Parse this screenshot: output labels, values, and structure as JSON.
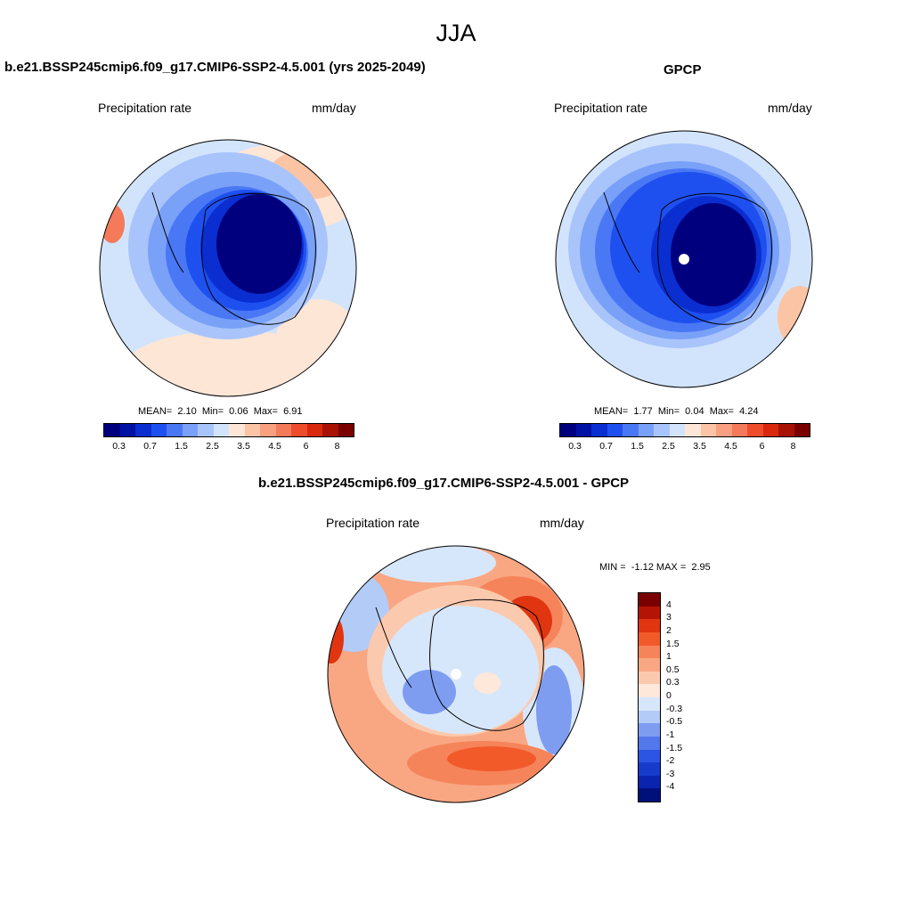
{
  "figure": {
    "season": "JJA",
    "panels": [
      {
        "title": "b.e21.BSSP245cmip6.f09_g17.CMIP6-SSP2-4.5.001 (yrs 2025-2049)",
        "variable": "Precipitation rate",
        "units": "mm/day",
        "stats": {
          "mean_label": "MEAN=",
          "mean": "2.10",
          "min_label": "Min=",
          "min": "0.06",
          "max_label": "Max=",
          "max": "6.91"
        }
      },
      {
        "title": "GPCP",
        "variable": "Precipitation rate",
        "units": "mm/day",
        "stats": {
          "mean_label": "MEAN=",
          "mean": "1.77",
          "min_label": "Min=",
          "min": "0.04",
          "max_label": "Max=",
          "max": "4.24"
        }
      },
      {
        "title": "b.e21.BSSP245cmip6.f09_g17.CMIP6-SSP2-4.5.001 - GPCP",
        "variable": "Precipitation rate",
        "units": "mm/day",
        "stats": {
          "min_label": "MIN =",
          "min": "-1.12",
          "max_label": "MAX =",
          "max": "2.95"
        }
      }
    ],
    "abs_colorbar": {
      "colors": [
        "#00007f",
        "#0012a3",
        "#0a2ed0",
        "#1e50f0",
        "#4a78f5",
        "#7aa1f8",
        "#a9c4fb",
        "#d2e4fc",
        "#fde6d6",
        "#fbc5a5",
        "#f8a07f",
        "#f47a5a",
        "#ef4c2c",
        "#d8290e",
        "#a71205",
        "#7a0000"
      ],
      "labels": [
        "0.3",
        "0.7",
        "1.5",
        "2.5",
        "3.5",
        "4.5",
        "6",
        "8"
      ]
    },
    "diff_colorbar": {
      "colors": [
        "#7a0000",
        "#b41405",
        "#e03510",
        "#f25a2a",
        "#f6845a",
        "#f9a783",
        "#fbcaae",
        "#fde8d9",
        "#d7e7fb",
        "#b2cbf7",
        "#7e9df1",
        "#5378ec",
        "#2d55e3",
        "#173ccc",
        "#0a24b0",
        "#00107a"
      ],
      "labels": [
        "4",
        "3",
        "2",
        "1.5",
        "1",
        "0.5",
        "0.3",
        "0",
        "-0.3",
        "-0.5",
        "-1",
        "-1.5",
        "-2",
        "-3",
        "-4"
      ]
    }
  }
}
